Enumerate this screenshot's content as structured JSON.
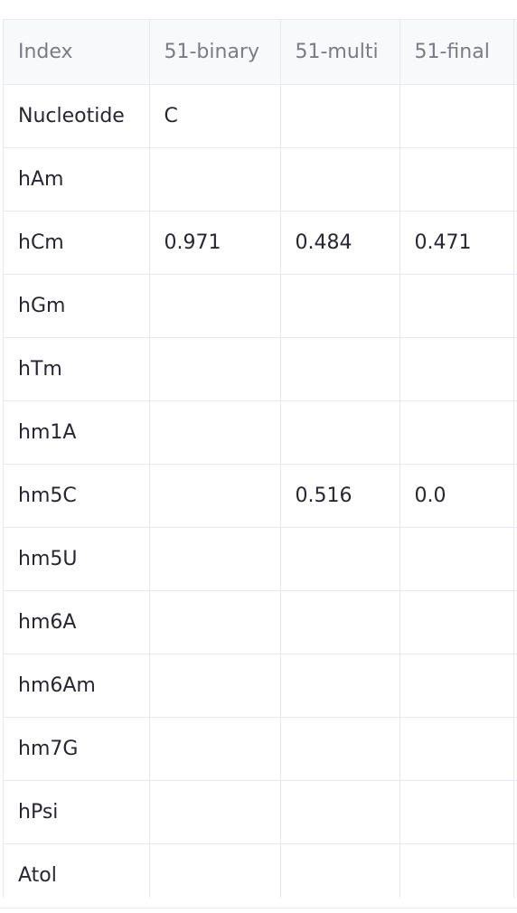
{
  "table": {
    "columns": [
      "Index",
      "51-binary",
      "51-multi",
      "51-final",
      ""
    ],
    "rows": [
      {
        "index": "Nucleotide",
        "cells": [
          "C",
          "",
          "",
          ""
        ]
      },
      {
        "index": "hAm",
        "cells": [
          "",
          "",
          "",
          ""
        ]
      },
      {
        "index": "hCm",
        "cells": [
          "0.971",
          "0.484",
          "0.471",
          ""
        ]
      },
      {
        "index": "hGm",
        "cells": [
          "",
          "",
          "",
          ""
        ]
      },
      {
        "index": "hTm",
        "cells": [
          "",
          "",
          "",
          ""
        ]
      },
      {
        "index": "hm1A",
        "cells": [
          "",
          "",
          "",
          ""
        ]
      },
      {
        "index": "hm5C",
        "cells": [
          "",
          "0.516",
          "0.0",
          ""
        ]
      },
      {
        "index": "hm5U",
        "cells": [
          "",
          "",
          "",
          ""
        ]
      },
      {
        "index": "hm6A",
        "cells": [
          "",
          "",
          "",
          ""
        ]
      },
      {
        "index": "hm6Am",
        "cells": [
          "",
          "",
          "",
          ""
        ]
      },
      {
        "index": "hm7G",
        "cells": [
          "",
          "",
          "",
          ""
        ]
      },
      {
        "index": "hPsi",
        "cells": [
          "",
          "",
          "",
          ""
        ]
      },
      {
        "index": "Atol",
        "cells": [
          "",
          "",
          "",
          ""
        ]
      }
    ]
  }
}
